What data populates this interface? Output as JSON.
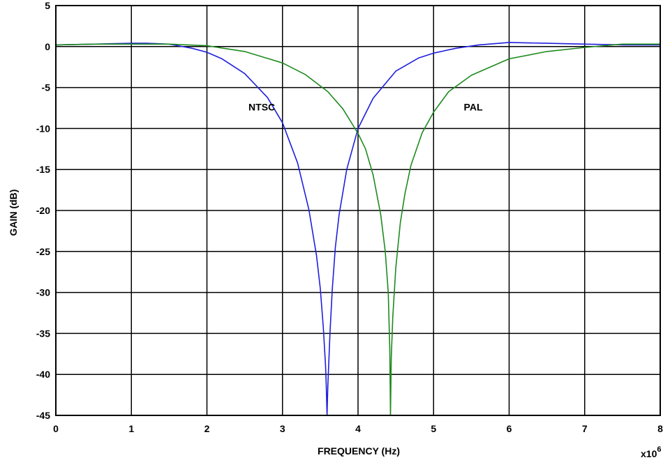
{
  "chart_data": {
    "type": "line",
    "title": "",
    "xlabel": "FREQUENCY (Hz)",
    "ylabel": "GAIN (dB)",
    "x_multiplier_label": "x10",
    "x_multiplier_exponent": "6",
    "xlim": [
      0,
      8
    ],
    "ylim": [
      -45,
      5
    ],
    "x_ticks": [
      0,
      1,
      2,
      3,
      4,
      5,
      6,
      7,
      8
    ],
    "y_ticks": [
      5,
      0,
      -5,
      -10,
      -15,
      -20,
      -25,
      -30,
      -35,
      -40,
      -45
    ],
    "grid": true,
    "series": [
      {
        "name": "NTSC",
        "color": "#1f1fdc",
        "x": [
          0,
          0.5,
          1.0,
          1.2,
          1.5,
          1.8,
          2.0,
          2.2,
          2.5,
          2.8,
          3.0,
          3.2,
          3.35,
          3.45,
          3.5,
          3.54,
          3.57,
          3.58,
          3.59,
          3.6,
          3.63,
          3.66,
          3.7,
          3.75,
          3.85,
          4.0,
          4.2,
          4.5,
          4.8,
          5.0,
          5.3,
          5.6,
          6.0,
          6.5,
          7.0,
          7.5,
          8.0
        ],
        "y": [
          0.2,
          0.3,
          0.4,
          0.4,
          0.3,
          -0.2,
          -0.7,
          -1.5,
          -3.3,
          -6.2,
          -9.3,
          -14.2,
          -19.9,
          -25.5,
          -29.5,
          -34.2,
          -39.0,
          -41.5,
          -45,
          -41.5,
          -34.8,
          -29.5,
          -24.5,
          -20.5,
          -15.0,
          -10.0,
          -6.3,
          -3.0,
          -1.4,
          -0.8,
          -0.2,
          0.2,
          0.5,
          0.4,
          0.3,
          0.2,
          0.2
        ]
      },
      {
        "name": "PAL",
        "color": "#1e8a1e",
        "x": [
          0,
          0.5,
          1.0,
          1.5,
          2.0,
          2.5,
          3.0,
          3.3,
          3.6,
          3.8,
          4.0,
          4.1,
          4.2,
          4.3,
          4.36,
          4.4,
          4.42,
          4.43,
          4.44,
          4.46,
          4.5,
          4.56,
          4.62,
          4.7,
          4.85,
          5.0,
          5.2,
          5.5,
          6.0,
          6.5,
          7.0,
          7.5,
          8.0
        ],
        "y": [
          0.2,
          0.3,
          0.3,
          0.3,
          0.1,
          -0.6,
          -2.0,
          -3.4,
          -5.5,
          -7.6,
          -10.6,
          -12.5,
          -15.7,
          -20.5,
          -25.0,
          -30.0,
          -37.0,
          -45,
          -38.0,
          -33.0,
          -27.0,
          -21.5,
          -18.0,
          -14.5,
          -10.5,
          -8.0,
          -5.5,
          -3.5,
          -1.5,
          -0.6,
          -0.1,
          0.3,
          0.3
        ]
      }
    ],
    "annotations": [
      {
        "text": "NTSC",
        "x": 2.55,
        "y": -7.8
      },
      {
        "text": "PAL",
        "x": 5.4,
        "y": -7.8
      }
    ]
  }
}
